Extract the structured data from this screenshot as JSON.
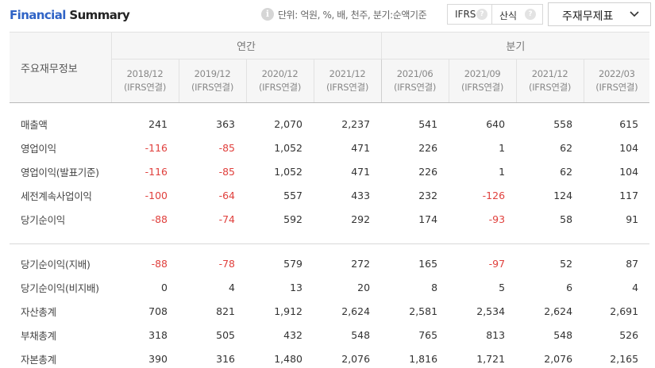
{
  "header": {
    "title_part1": "Financial",
    "title_part2": "Summary",
    "unit_text": "단위: 억원, %, 배, 천주, 분기:순액기준",
    "ifrs_label": "IFRS",
    "calc_label": "산식",
    "help_glyph": "?",
    "info_glyph": "i",
    "select_label": "주재무제표"
  },
  "table": {
    "row_header_label": "주요재무정보",
    "groups": {
      "annual": "연간",
      "quarterly": "분기"
    },
    "periods": [
      "2018/12",
      "2019/12",
      "2020/12",
      "2021/12",
      "2021/06",
      "2021/09",
      "2021/12",
      "2022/03"
    ],
    "basis": [
      "(IFRS연결)",
      "(IFRS연결)",
      "(IFRS연결)",
      "(IFRS연결)",
      "(IFRS연결)",
      "(IFRS연결)",
      "(IFRS연결)",
      "(IFRS연결)"
    ],
    "rows": [
      {
        "label": "매출액",
        "values": [
          "241",
          "363",
          "2,070",
          "2,237",
          "541",
          "640",
          "558",
          "615"
        ]
      },
      {
        "label": "영업이익",
        "values": [
          "-116",
          "-85",
          "1,052",
          "471",
          "226",
          "1",
          "62",
          "104"
        ]
      },
      {
        "label": "영업이익(발표기준)",
        "values": [
          "-116",
          "-85",
          "1,052",
          "471",
          "226",
          "1",
          "62",
          "104"
        ]
      },
      {
        "label": "세전계속사업이익",
        "values": [
          "-100",
          "-64",
          "557",
          "433",
          "232",
          "-126",
          "124",
          "117"
        ]
      },
      {
        "label": "당기순이익",
        "values": [
          "-88",
          "-74",
          "592",
          "292",
          "174",
          "-93",
          "58",
          "91"
        ]
      },
      {
        "label": "당기순이익(지배)",
        "values": [
          "-88",
          "-78",
          "579",
          "272",
          "165",
          "-97",
          "52",
          "87"
        ]
      },
      {
        "label": "당기순이익(비지배)",
        "values": [
          "0",
          "4",
          "13",
          "20",
          "8",
          "5",
          "6",
          "4"
        ]
      },
      {
        "label": "자산총계",
        "values": [
          "708",
          "821",
          "1,912",
          "2,624",
          "2,581",
          "2,534",
          "2,624",
          "2,691"
        ]
      },
      {
        "label": "부채총계",
        "values": [
          "318",
          "505",
          "432",
          "548",
          "765",
          "813",
          "548",
          "526"
        ]
      },
      {
        "label": "자본총계",
        "values": [
          "390",
          "316",
          "1,480",
          "2,076",
          "1,816",
          "1,721",
          "2,076",
          "2,165"
        ]
      }
    ]
  },
  "colors": {
    "brand_blue": "#2f63c6",
    "negative": "#e0403d",
    "header_bg": "#f6f6f6"
  }
}
